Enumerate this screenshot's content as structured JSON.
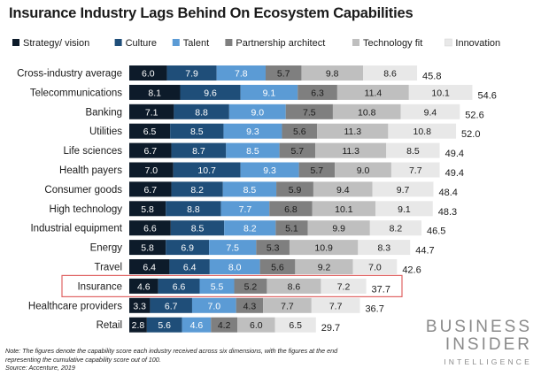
{
  "chart_data": {
    "type": "bar",
    "orientation": "horizontal",
    "stacked": true,
    "title": "Insurance Industry Lags Behind On Ecosystem Capabilities",
    "legend_position": "top",
    "grid": false,
    "highlighted_category": "Insurance",
    "highlight_color": "#e06464",
    "categories": [
      "Cross-industry average",
      "Telecommunications",
      "Banking",
      "Utilities",
      "Life sciences",
      "Health payers",
      "Consumer goods",
      "High technology",
      "Industrial equipment",
      "Energy",
      "Travel",
      "Insurance",
      "Healthcare providers",
      "Retail"
    ],
    "series": [
      {
        "name": "Strategy/ vision",
        "color": "#0d1b2a",
        "values": [
          6.0,
          8.1,
          7.1,
          6.5,
          6.7,
          7.0,
          6.7,
          5.8,
          6.6,
          5.8,
          6.4,
          4.6,
          3.3,
          2.8
        ]
      },
      {
        "name": "Culture",
        "color": "#1f4e79",
        "values": [
          7.9,
          9.6,
          8.8,
          8.5,
          8.7,
          10.7,
          8.2,
          8.8,
          8.5,
          6.9,
          6.4,
          6.6,
          6.7,
          5.6
        ]
      },
      {
        "name": "Talent",
        "color": "#5b9bd5",
        "values": [
          7.8,
          9.1,
          9.0,
          9.3,
          8.5,
          9.3,
          8.5,
          7.7,
          8.2,
          7.5,
          8.0,
          5.5,
          7.0,
          4.6
        ]
      },
      {
        "name": "Partnership architect",
        "color": "#7f7f7f",
        "values": [
          5.7,
          6.3,
          7.5,
          5.6,
          5.7,
          5.7,
          5.9,
          6.8,
          5.1,
          5.3,
          5.6,
          5.2,
          4.3,
          4.2
        ]
      },
      {
        "name": "Technology fit",
        "color": "#bfbfbf",
        "values": [
          9.8,
          11.4,
          10.8,
          11.3,
          11.3,
          9.0,
          9.4,
          10.1,
          9.9,
          10.9,
          9.2,
          8.6,
          7.7,
          6.0
        ]
      },
      {
        "name": "Innovation",
        "color": "#e8e8e8",
        "values": [
          8.6,
          10.1,
          9.4,
          10.8,
          8.5,
          7.7,
          9.7,
          9.1,
          8.2,
          8.3,
          7.0,
          7.2,
          7.7,
          6.5
        ]
      }
    ],
    "totals": [
      "45.8",
      "54.6",
      "52.6",
      "52.0",
      "49.4",
      "49.4",
      "48.4",
      "48.3",
      "46.5",
      "44.7",
      "42.6",
      "37.7",
      "36.7",
      "29.7"
    ],
    "xlim": [
      0,
      62
    ]
  },
  "notes": [
    "Note: The figures denote the capability score each industry received across six dimensions, with the figures at the end",
    "representing the cumulative capability score out of 100.",
    "Source: Accenture, 2019"
  ],
  "logo": {
    "line1": "BUSINESS",
    "line2": "INSIDER",
    "line3": "INTELLIGENCE"
  }
}
